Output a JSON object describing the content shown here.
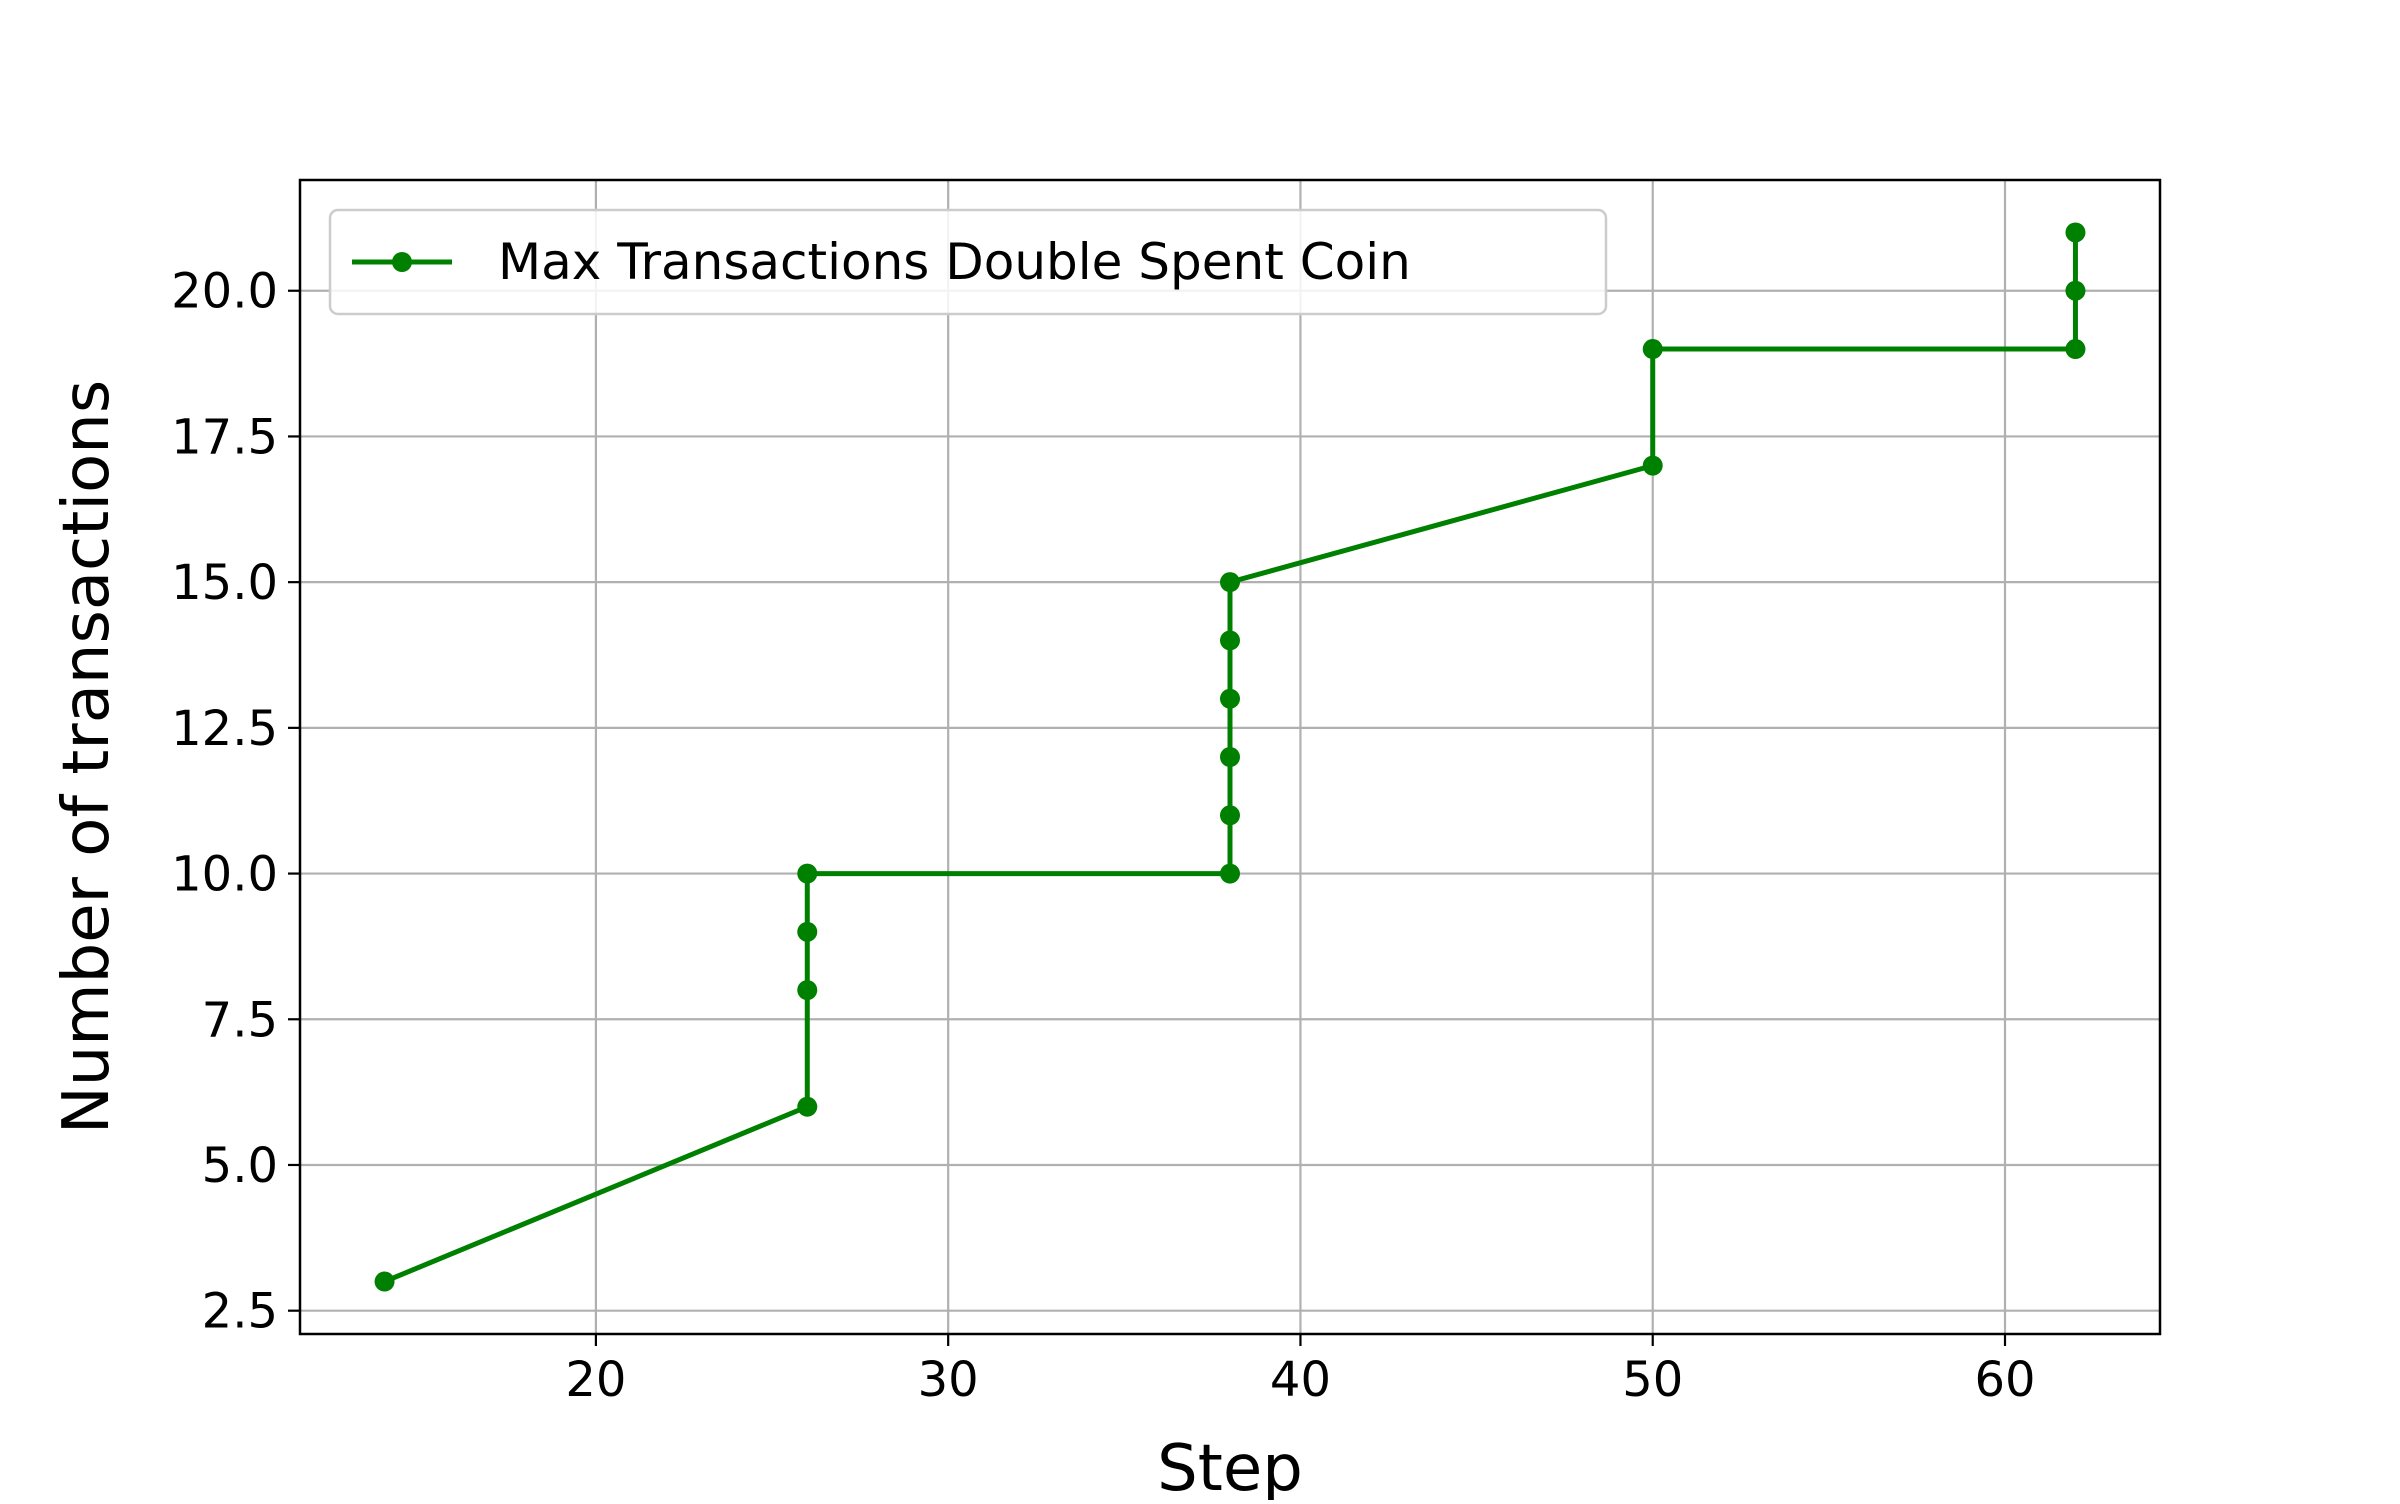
{
  "chart_data": {
    "type": "line",
    "xlabel": "Step",
    "ylabel": "Number of transactions",
    "xlim": [
      11.6,
      64.4
    ],
    "ylim": [
      2.1,
      21.9
    ],
    "xticks": [
      20,
      30,
      40,
      50,
      60
    ],
    "xtick_labels": [
      "20",
      "30",
      "40",
      "50",
      "60"
    ],
    "yticks": [
      2.5,
      5.0,
      7.5,
      10.0,
      12.5,
      15.0,
      17.5,
      20.0
    ],
    "ytick_labels": [
      "2.5",
      "5.0",
      "7.5",
      "10.0",
      "12.5",
      "15.0",
      "17.5",
      "20.0"
    ],
    "grid": true,
    "legend_position": "top-left",
    "series": [
      {
        "name": "Max Transactions Double Spent Coin",
        "color": "#008000",
        "marker": "circle",
        "x": [
          14,
          26,
          26,
          26,
          26,
          38,
          38,
          38,
          38,
          38,
          38,
          50,
          50,
          62,
          62,
          62
        ],
        "y": [
          3,
          6,
          8,
          9,
          10,
          10,
          11,
          12,
          13,
          14,
          15,
          17,
          19,
          19,
          20,
          21
        ]
      }
    ]
  }
}
